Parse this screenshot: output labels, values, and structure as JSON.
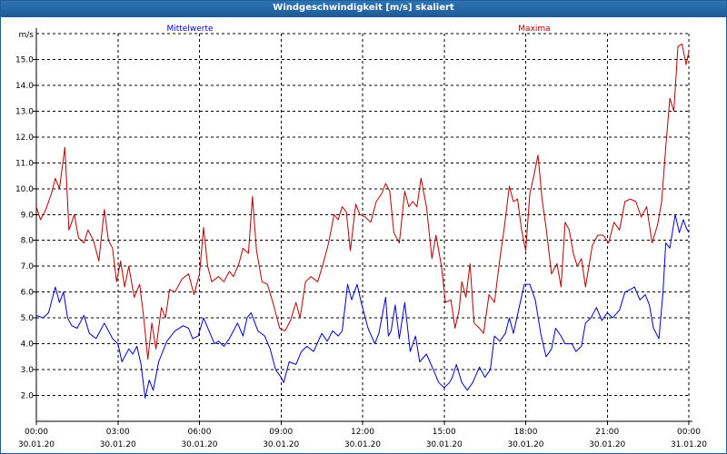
{
  "window": {
    "title": "Windgeschwindigkeit [m/s] skaliert"
  },
  "chart_data": {
    "type": "line",
    "title": "Windgeschwindigkeit [m/s] skaliert",
    "ylabel": "m/s",
    "xlabel": "",
    "ylim": [
      1.0,
      16.0
    ],
    "xlim": [
      0,
      24
    ],
    "grid": true,
    "yticks": [
      "2.0",
      "3.0",
      "4.0",
      "5.0",
      "6.0",
      "7.0",
      "8.0",
      "9.0",
      "10.0",
      "11.0",
      "12.0",
      "13.0",
      "14.0",
      "15.0"
    ],
    "xticks": [
      {
        "time": "00:00",
        "date": "30.01.20"
      },
      {
        "time": "03:00",
        "date": "30.01.20"
      },
      {
        "time": "06:00",
        "date": "30.01.20"
      },
      {
        "time": "09:00",
        "date": "30.01.20"
      },
      {
        "time": "12:00",
        "date": "30.01.20"
      },
      {
        "time": "15:00",
        "date": "30.01.20"
      },
      {
        "time": "18:00",
        "date": "30.01.20"
      },
      {
        "time": "21:00",
        "date": "30.01.20"
      },
      {
        "time": "00:00",
        "date": "31.01.20"
      }
    ],
    "series": [
      {
        "name": "Mittelwerte",
        "color": "#0000c8",
        "points": [
          [
            0.0,
            5.1
          ],
          [
            0.25,
            5.0
          ],
          [
            0.45,
            5.2
          ],
          [
            0.7,
            6.2
          ],
          [
            0.85,
            5.6
          ],
          [
            1.0,
            6.0
          ],
          [
            1.15,
            5.0
          ],
          [
            1.3,
            4.7
          ],
          [
            1.5,
            4.6
          ],
          [
            1.75,
            5.1
          ],
          [
            1.95,
            4.4
          ],
          [
            2.2,
            4.2
          ],
          [
            2.5,
            4.8
          ],
          [
            2.8,
            4.2
          ],
          [
            3.0,
            4.0
          ],
          [
            3.15,
            3.3
          ],
          [
            3.4,
            3.8
          ],
          [
            3.55,
            3.6
          ],
          [
            3.7,
            3.9
          ],
          [
            3.85,
            3.2
          ],
          [
            4.0,
            1.9
          ],
          [
            4.15,
            2.6
          ],
          [
            4.3,
            2.2
          ],
          [
            4.5,
            3.3
          ],
          [
            4.8,
            4.1
          ],
          [
            5.1,
            4.5
          ],
          [
            5.4,
            4.7
          ],
          [
            5.6,
            4.6
          ],
          [
            5.75,
            4.2
          ],
          [
            5.95,
            4.3
          ],
          [
            6.15,
            5.0
          ],
          [
            6.35,
            4.5
          ],
          [
            6.55,
            4.0
          ],
          [
            6.7,
            4.1
          ],
          [
            6.9,
            3.9
          ],
          [
            7.1,
            4.2
          ],
          [
            7.4,
            4.8
          ],
          [
            7.6,
            4.3
          ],
          [
            7.75,
            5.0
          ],
          [
            7.9,
            5.2
          ],
          [
            8.15,
            4.5
          ],
          [
            8.4,
            4.3
          ],
          [
            8.6,
            3.8
          ],
          [
            8.8,
            3.0
          ],
          [
            9.0,
            2.7
          ],
          [
            9.1,
            2.5
          ],
          [
            9.3,
            3.3
          ],
          [
            9.55,
            3.2
          ],
          [
            9.75,
            3.7
          ],
          [
            9.95,
            3.9
          ],
          [
            10.2,
            3.7
          ],
          [
            10.5,
            4.4
          ],
          [
            10.7,
            4.1
          ],
          [
            10.9,
            4.5
          ],
          [
            11.1,
            4.3
          ],
          [
            11.25,
            4.5
          ],
          [
            11.45,
            6.3
          ],
          [
            11.6,
            5.7
          ],
          [
            11.8,
            6.3
          ],
          [
            11.95,
            5.6
          ],
          [
            12.2,
            4.6
          ],
          [
            12.45,
            4.0
          ],
          [
            12.6,
            4.4
          ],
          [
            12.85,
            5.8
          ],
          [
            12.95,
            4.3
          ],
          [
            13.05,
            4.5
          ],
          [
            13.2,
            5.5
          ],
          [
            13.35,
            4.2
          ],
          [
            13.55,
            5.6
          ],
          [
            13.75,
            3.7
          ],
          [
            13.95,
            4.3
          ],
          [
            14.1,
            3.3
          ],
          [
            14.35,
            3.6
          ],
          [
            14.6,
            3.0
          ],
          [
            14.8,
            2.5
          ],
          [
            15.0,
            2.3
          ],
          [
            15.2,
            2.5
          ],
          [
            15.3,
            2.7
          ],
          [
            15.45,
            3.2
          ],
          [
            15.65,
            2.5
          ],
          [
            15.85,
            2.2
          ],
          [
            16.05,
            2.5
          ],
          [
            16.3,
            3.1
          ],
          [
            16.5,
            2.7
          ],
          [
            16.7,
            3.0
          ],
          [
            16.85,
            4.3
          ],
          [
            17.05,
            4.1
          ],
          [
            17.25,
            4.4
          ],
          [
            17.4,
            5.0
          ],
          [
            17.55,
            4.4
          ],
          [
            17.8,
            5.6
          ],
          [
            17.95,
            6.3
          ],
          [
            18.15,
            6.3
          ],
          [
            18.35,
            5.7
          ],
          [
            18.55,
            4.4
          ],
          [
            18.75,
            3.5
          ],
          [
            18.95,
            3.8
          ],
          [
            19.1,
            4.6
          ],
          [
            19.3,
            4.3
          ],
          [
            19.45,
            4.0
          ],
          [
            19.7,
            4.0
          ],
          [
            19.85,
            3.7
          ],
          [
            20.05,
            3.9
          ],
          [
            20.2,
            4.8
          ],
          [
            20.4,
            5.0
          ],
          [
            20.6,
            5.4
          ],
          [
            20.8,
            4.9
          ],
          [
            21.0,
            5.2
          ],
          [
            21.2,
            5.0
          ],
          [
            21.45,
            5.3
          ],
          [
            21.65,
            6.0
          ],
          [
            21.85,
            6.1
          ],
          [
            22.0,
            6.2
          ],
          [
            22.2,
            5.7
          ],
          [
            22.4,
            5.9
          ],
          [
            22.55,
            5.5
          ],
          [
            22.7,
            4.6
          ],
          [
            22.9,
            4.2
          ],
          [
            23.05,
            6.0
          ],
          [
            23.15,
            7.9
          ],
          [
            23.3,
            7.7
          ],
          [
            23.5,
            9.0
          ],
          [
            23.65,
            8.3
          ],
          [
            23.8,
            8.8
          ],
          [
            23.9,
            8.5
          ],
          [
            24.0,
            8.3
          ]
        ]
      },
      {
        "name": "Maxima",
        "color": "#b40000",
        "points": [
          [
            0.0,
            9.3
          ],
          [
            0.15,
            8.8
          ],
          [
            0.35,
            9.2
          ],
          [
            0.55,
            9.8
          ],
          [
            0.7,
            10.4
          ],
          [
            0.85,
            10.0
          ],
          [
            1.05,
            11.6
          ],
          [
            1.2,
            8.4
          ],
          [
            1.4,
            9.0
          ],
          [
            1.55,
            8.1
          ],
          [
            1.75,
            7.9
          ],
          [
            1.9,
            8.4
          ],
          [
            2.1,
            8.0
          ],
          [
            2.3,
            7.2
          ],
          [
            2.5,
            9.2
          ],
          [
            2.65,
            8.0
          ],
          [
            2.8,
            7.7
          ],
          [
            2.95,
            6.4
          ],
          [
            3.1,
            7.2
          ],
          [
            3.25,
            6.2
          ],
          [
            3.4,
            7.0
          ],
          [
            3.6,
            5.8
          ],
          [
            3.8,
            6.3
          ],
          [
            3.95,
            5.0
          ],
          [
            4.1,
            3.4
          ],
          [
            4.25,
            4.8
          ],
          [
            4.4,
            3.8
          ],
          [
            4.6,
            5.4
          ],
          [
            4.75,
            5.0
          ],
          [
            4.9,
            6.1
          ],
          [
            5.1,
            6.0
          ],
          [
            5.35,
            6.5
          ],
          [
            5.6,
            6.7
          ],
          [
            5.8,
            5.9
          ],
          [
            6.0,
            6.7
          ],
          [
            6.15,
            8.5
          ],
          [
            6.3,
            7.0
          ],
          [
            6.45,
            6.4
          ],
          [
            6.7,
            6.6
          ],
          [
            6.9,
            6.4
          ],
          [
            7.1,
            6.8
          ],
          [
            7.25,
            6.6
          ],
          [
            7.45,
            7.1
          ],
          [
            7.6,
            7.7
          ],
          [
            7.8,
            7.5
          ],
          [
            7.95,
            9.7
          ],
          [
            8.1,
            7.6
          ],
          [
            8.3,
            6.4
          ],
          [
            8.5,
            6.3
          ],
          [
            8.7,
            5.6
          ],
          [
            8.95,
            4.6
          ],
          [
            9.15,
            4.5
          ],
          [
            9.35,
            4.9
          ],
          [
            9.55,
            5.6
          ],
          [
            9.7,
            5.0
          ],
          [
            9.9,
            6.4
          ],
          [
            10.1,
            6.6
          ],
          [
            10.35,
            6.4
          ],
          [
            10.55,
            7.1
          ],
          [
            10.75,
            7.9
          ],
          [
            10.95,
            9.0
          ],
          [
            11.1,
            8.8
          ],
          [
            11.25,
            9.3
          ],
          [
            11.4,
            9.1
          ],
          [
            11.55,
            7.6
          ],
          [
            11.75,
            9.4
          ],
          [
            11.9,
            9.0
          ],
          [
            12.1,
            8.9
          ],
          [
            12.3,
            8.7
          ],
          [
            12.5,
            9.5
          ],
          [
            12.7,
            9.8
          ],
          [
            12.85,
            10.2
          ],
          [
            13.0,
            9.9
          ],
          [
            13.15,
            8.3
          ],
          [
            13.35,
            7.9
          ],
          [
            13.55,
            9.9
          ],
          [
            13.7,
            9.3
          ],
          [
            13.85,
            9.5
          ],
          [
            14.0,
            9.3
          ],
          [
            14.15,
            10.4
          ],
          [
            14.35,
            9.3
          ],
          [
            14.55,
            7.3
          ],
          [
            14.7,
            8.2
          ],
          [
            14.9,
            7.0
          ],
          [
            15.05,
            5.6
          ],
          [
            15.25,
            5.7
          ],
          [
            15.4,
            4.6
          ],
          [
            15.55,
            5.3
          ],
          [
            15.65,
            6.4
          ],
          [
            15.8,
            5.8
          ],
          [
            15.95,
            7.1
          ],
          [
            16.1,
            4.8
          ],
          [
            16.3,
            4.6
          ],
          [
            16.45,
            4.4
          ],
          [
            16.65,
            5.9
          ],
          [
            16.85,
            5.6
          ],
          [
            17.05,
            7.3
          ],
          [
            17.2,
            8.4
          ],
          [
            17.4,
            10.1
          ],
          [
            17.55,
            9.5
          ],
          [
            17.7,
            9.6
          ],
          [
            17.85,
            8.4
          ],
          [
            18.0,
            7.6
          ],
          [
            18.15,
            9.8
          ],
          [
            18.3,
            10.5
          ],
          [
            18.45,
            11.3
          ],
          [
            18.6,
            9.6
          ],
          [
            18.75,
            8.5
          ],
          [
            18.95,
            6.7
          ],
          [
            19.15,
            7.1
          ],
          [
            19.3,
            6.2
          ],
          [
            19.45,
            8.7
          ],
          [
            19.6,
            8.4
          ],
          [
            19.75,
            7.5
          ],
          [
            19.9,
            7.0
          ],
          [
            20.05,
            7.3
          ],
          [
            20.2,
            6.2
          ],
          [
            20.45,
            7.8
          ],
          [
            20.65,
            8.2
          ],
          [
            20.85,
            8.2
          ],
          [
            21.05,
            7.9
          ],
          [
            21.25,
            8.7
          ],
          [
            21.45,
            8.4
          ],
          [
            21.65,
            9.5
          ],
          [
            21.85,
            9.6
          ],
          [
            22.05,
            9.5
          ],
          [
            22.25,
            8.9
          ],
          [
            22.45,
            9.3
          ],
          [
            22.65,
            7.9
          ],
          [
            22.85,
            8.6
          ],
          [
            23.0,
            9.5
          ],
          [
            23.15,
            11.6
          ],
          [
            23.3,
            13.5
          ],
          [
            23.45,
            13.0
          ],
          [
            23.6,
            15.5
          ],
          [
            23.75,
            15.6
          ],
          [
            23.9,
            14.8
          ],
          [
            24.0,
            15.3
          ]
        ]
      }
    ]
  }
}
